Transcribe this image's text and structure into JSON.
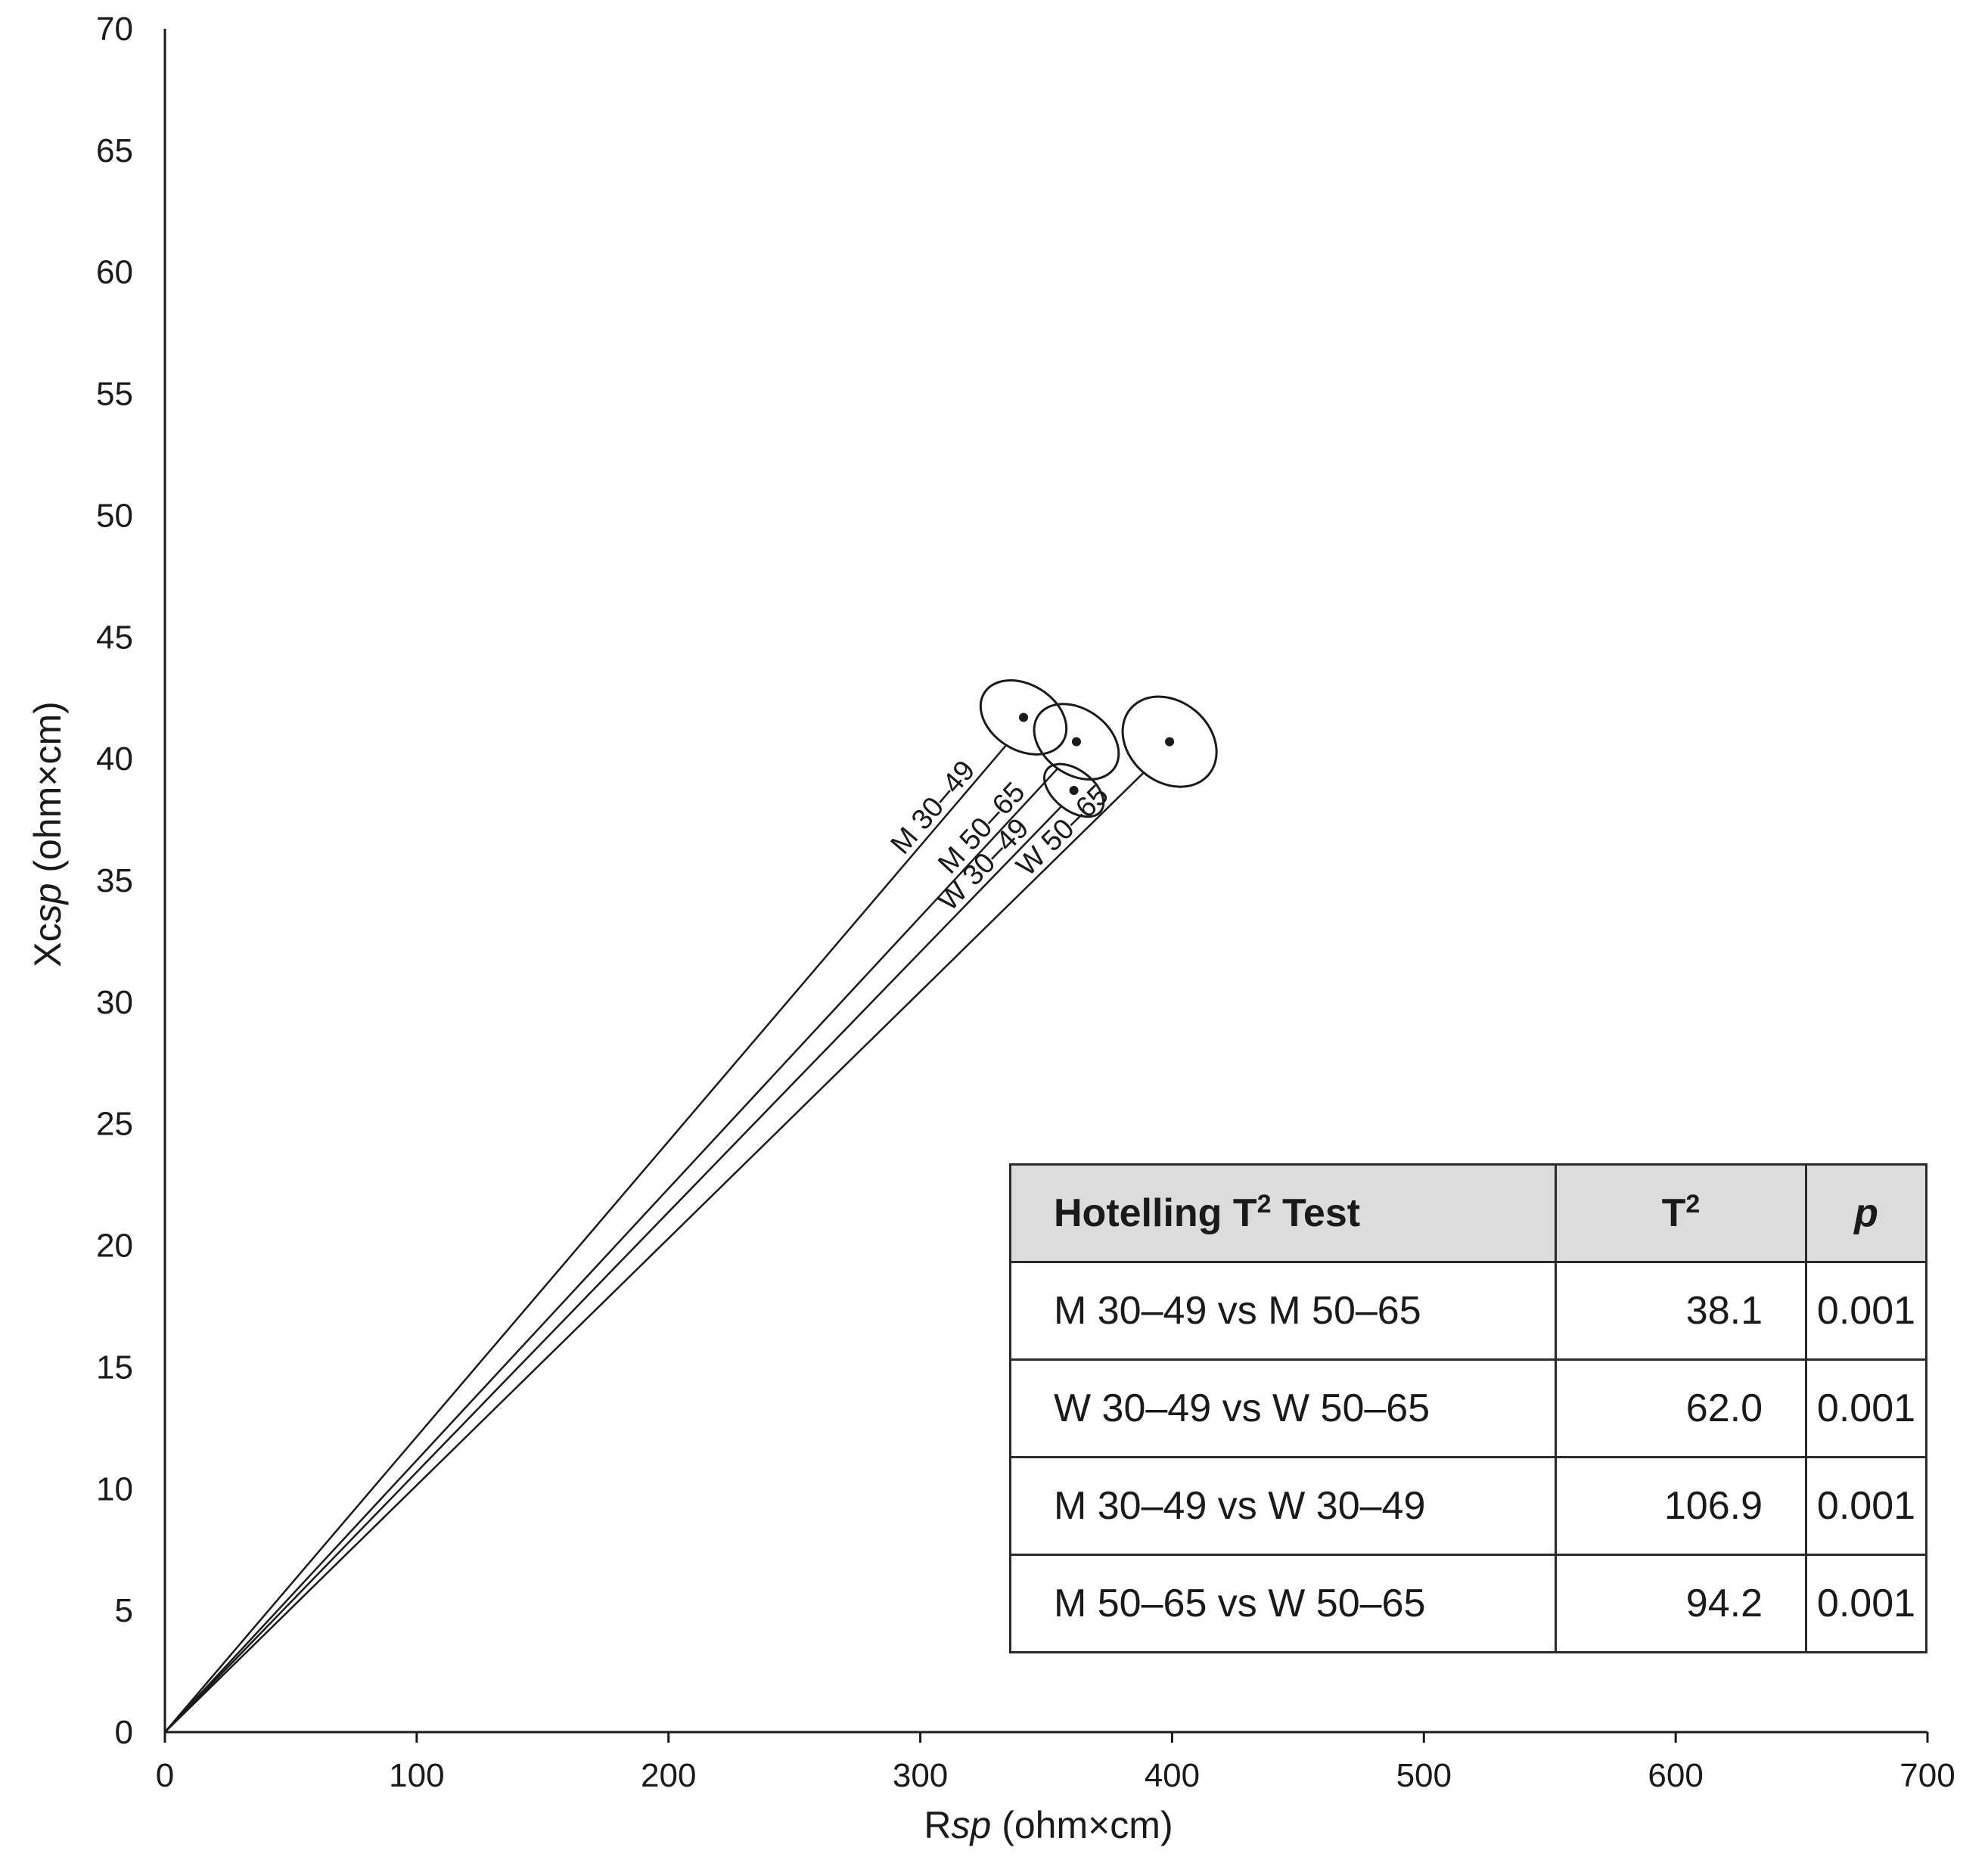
{
  "chart_data": {
    "type": "scatter",
    "subtype": "rxc-vector-plot-with-confidence-ellipses",
    "xlabel_prefix": "R",
    "xlabel_italic": "sp",
    "xlabel_suffix": " (ohm×cm)",
    "ylabel_prefix": "Xc",
    "ylabel_italic": "sp",
    "ylabel_suffix": " (ohm×cm)",
    "xlim": [
      0,
      700
    ],
    "ylim": [
      0,
      70
    ],
    "xticks": [
      0,
      100,
      200,
      300,
      400,
      500,
      600,
      700
    ],
    "yticks": [
      0,
      5,
      10,
      15,
      20,
      25,
      30,
      35,
      40,
      45,
      50,
      55,
      60,
      65,
      70
    ],
    "grid": false,
    "series": [
      {
        "name": "M 30–49",
        "x": 341,
        "y": 41.7,
        "ellipse": {
          "rx": 13,
          "ry": 1.9,
          "angle_deg": 58
        }
      },
      {
        "name": "M 50–65",
        "x": 362,
        "y": 40.7,
        "ellipse": {
          "rx": 13,
          "ry": 1.9,
          "angle_deg": 55
        }
      },
      {
        "name": "W 30–49",
        "x": 361,
        "y": 38.7,
        "ellipse": {
          "rx": 8,
          "ry": 1.4,
          "angle_deg": 52
        }
      },
      {
        "name": "W 50–65",
        "x": 399,
        "y": 40.7,
        "ellipse": {
          "rx": 16,
          "ry": 2.1,
          "angle_deg": 50
        }
      }
    ]
  },
  "table": {
    "header": {
      "test_prefix": "Hotelling T",
      "test_sup": "2",
      "test_suffix": " Test",
      "stat_base": "T",
      "stat_sup": "2",
      "p": "p"
    },
    "rows": [
      {
        "comparison": "M 30–49 vs M 50–65",
        "t2": "38.1",
        "p": "0.001"
      },
      {
        "comparison": "W 30–49 vs W 50–65",
        "t2": "62.0",
        "p": "0.001"
      },
      {
        "comparison": "M 30–49 vs W 30–49",
        "t2": "106.9",
        "p": "0.001"
      },
      {
        "comparison": "M 50–65 vs W 50–65",
        "t2": "94.2",
        "p": "0.001"
      }
    ]
  }
}
